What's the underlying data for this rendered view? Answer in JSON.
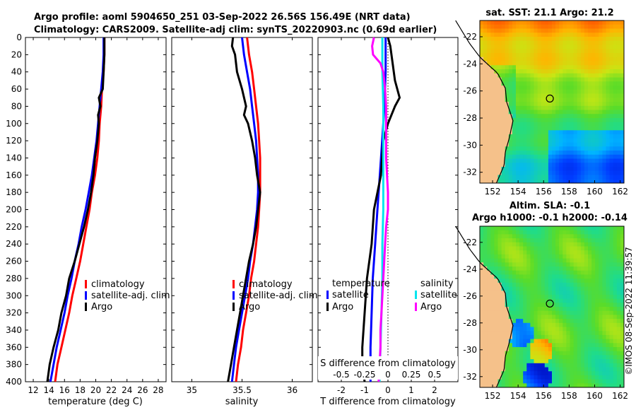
{
  "header": {
    "title_line1": "Argo profile: aoml 5904650_251 03-Sep-2022 26.56S 156.49E (NRT data)",
    "title_line2": "Climatology: CARS2009. Satellite-adj clim: synTS_20220903.nc (0.69d earlier)"
  },
  "colors": {
    "climatology": "#ff0000",
    "satellite": "#0000ff",
    "argo": "#000000",
    "satellite_salinity": "#00e5ee",
    "argo_salinity": "#ff00ff",
    "land": "#f5c18a"
  },
  "chart_data": [
    {
      "type": "line",
      "name": "temperature-profile",
      "xlabel": "temperature (deg C)",
      "ylabel": "",
      "xlim": [
        11,
        29
      ],
      "ylim": [
        400,
        0
      ],
      "xticks": [
        12,
        14,
        16,
        18,
        20,
        22,
        24,
        26,
        28
      ],
      "yticks": [
        0,
        20,
        40,
        60,
        80,
        100,
        120,
        140,
        160,
        180,
        200,
        220,
        240,
        260,
        280,
        300,
        320,
        340,
        360,
        380,
        400
      ],
      "legend": [
        "climatology",
        "satellite-adj. clim",
        "Argo"
      ],
      "series": [
        {
          "name": "climatology",
          "color": "#ff0000",
          "depth": [
            0,
            20,
            40,
            60,
            80,
            100,
            120,
            140,
            160,
            180,
            200,
            220,
            240,
            260,
            280,
            300,
            320,
            340,
            360,
            380,
            400
          ],
          "values": [
            21.1,
            21.1,
            21.0,
            20.8,
            20.7,
            20.5,
            20.4,
            20.2,
            19.9,
            19.5,
            19.2,
            18.8,
            18.4,
            18.0,
            17.5,
            17.0,
            16.6,
            16.1,
            15.6,
            15.1,
            14.8
          ]
        },
        {
          "name": "satellite-adj. clim",
          "color": "#0000ff",
          "depth": [
            0,
            20,
            40,
            60,
            80,
            100,
            120,
            140,
            160,
            180,
            200,
            220,
            240,
            260,
            280,
            300,
            320,
            340,
            360,
            380,
            400
          ],
          "values": [
            21.0,
            21.0,
            20.9,
            20.7,
            20.5,
            20.3,
            20.1,
            19.8,
            19.5,
            19.1,
            18.7,
            18.2,
            17.8,
            17.3,
            16.9,
            16.4,
            16.0,
            15.5,
            15.0,
            14.6,
            14.2
          ]
        },
        {
          "name": "Argo",
          "color": "#000000",
          "depth": [
            0,
            20,
            40,
            60,
            70,
            80,
            90,
            100,
            120,
            140,
            160,
            180,
            200,
            220,
            240,
            260,
            280,
            300,
            320,
            340,
            360,
            380,
            400
          ],
          "values": [
            21.1,
            21.1,
            21.0,
            20.9,
            20.4,
            20.6,
            20.3,
            20.4,
            20.2,
            19.9,
            19.7,
            19.4,
            19.0,
            18.5,
            17.9,
            17.3,
            16.6,
            16.2,
            15.6,
            15.2,
            14.6,
            14.1,
            13.8
          ]
        }
      ]
    },
    {
      "type": "line",
      "name": "salinity-profile",
      "xlabel": "salinity",
      "ylabel": "",
      "xlim": [
        34.8,
        36.2
      ],
      "ylim": [
        400,
        0
      ],
      "xticks": [
        35,
        35.5,
        36
      ],
      "xtick_labels": [
        "35",
        "35.5",
        "36"
      ],
      "legend": [
        "climatology",
        "satellite-adj. clim",
        "Argo"
      ],
      "series": [
        {
          "name": "climatology",
          "color": "#ff0000",
          "depth": [
            0,
            20,
            40,
            60,
            80,
            100,
            120,
            140,
            160,
            180,
            200,
            220,
            240,
            260,
            280,
            300,
            320,
            340,
            360,
            380,
            400
          ],
          "values": [
            35.55,
            35.57,
            35.6,
            35.62,
            35.64,
            35.66,
            35.67,
            35.68,
            35.68,
            35.68,
            35.67,
            35.66,
            35.64,
            35.62,
            35.59,
            35.57,
            35.54,
            35.51,
            35.49,
            35.46,
            35.44
          ]
        },
        {
          "name": "satellite-adj. clim",
          "color": "#0000ff",
          "depth": [
            0,
            20,
            40,
            60,
            80,
            100,
            120,
            140,
            160,
            180,
            200,
            220,
            240,
            260,
            280,
            300,
            320,
            340,
            360,
            380,
            400
          ],
          "values": [
            35.5,
            35.52,
            35.55,
            35.58,
            35.6,
            35.62,
            35.64,
            35.65,
            35.66,
            35.66,
            35.65,
            35.63,
            35.61,
            35.58,
            35.56,
            35.53,
            35.5,
            35.47,
            35.44,
            35.42,
            35.4
          ]
        },
        {
          "name": "Argo",
          "color": "#000000",
          "depth": [
            0,
            10,
            20,
            40,
            60,
            80,
            90,
            100,
            120,
            140,
            160,
            180,
            200,
            220,
            240,
            260,
            280,
            300,
            320,
            340,
            360,
            380,
            400
          ],
          "values": [
            35.41,
            35.4,
            35.43,
            35.45,
            35.5,
            35.54,
            35.52,
            35.56,
            35.6,
            35.63,
            35.65,
            35.68,
            35.66,
            35.64,
            35.61,
            35.57,
            35.54,
            35.51,
            35.48,
            35.45,
            35.42,
            35.39,
            35.36
          ]
        }
      ]
    },
    {
      "type": "line",
      "name": "difference-profile",
      "xlabel": "T difference from climatology",
      "ylabel": "",
      "xlim": [
        -3,
        3
      ],
      "ylim": [
        400,
        0
      ],
      "xticks": [
        -2,
        -1,
        0,
        1,
        2
      ],
      "top_axis_label": "S difference from climatology",
      "top_axis_ticks": [
        "-0.5",
        "-0.25",
        "0",
        "0.25",
        "0.5"
      ],
      "zero_line": "dotted",
      "legend_temperature": {
        "heading": "temperature",
        "items": [
          "satellite",
          "Argo"
        ]
      },
      "legend_salinity": {
        "heading": "salinity",
        "items": [
          "satellite",
          "Argo"
        ]
      },
      "series": [
        {
          "name": "T satellite",
          "color": "#0000ff",
          "depth": [
            0,
            40,
            80,
            120,
            160,
            200,
            240,
            280,
            320,
            360,
            400
          ],
          "values": [
            -0.1,
            -0.1,
            -0.15,
            -0.25,
            -0.35,
            -0.45,
            -0.55,
            -0.65,
            -0.7,
            -0.75,
            -0.75
          ]
        },
        {
          "name": "T Argo",
          "color": "#000000",
          "depth": [
            0,
            10,
            30,
            50,
            70,
            80,
            100,
            120,
            160,
            200,
            240,
            280,
            320,
            360,
            380,
            400
          ],
          "values": [
            0.0,
            0.1,
            0.2,
            0.3,
            0.5,
            0.3,
            0.0,
            -0.2,
            -0.3,
            -0.6,
            -0.7,
            -0.9,
            -1.0,
            -1.1,
            -1.1,
            -1.0
          ]
        },
        {
          "name": "S satellite",
          "color": "#00e5ee",
          "depth": [
            0,
            40,
            80,
            120,
            160,
            200,
            240,
            280,
            320,
            360,
            400
          ],
          "values": [
            -0.06,
            -0.06,
            -0.05,
            -0.05,
            -0.05,
            -0.05,
            -0.06,
            -0.06,
            -0.07,
            -0.08,
            -0.09
          ]
        },
        {
          "name": "S Argo",
          "color": "#ff00ff",
          "depth": [
            0,
            10,
            20,
            30,
            40,
            60,
            80,
            100,
            120,
            140,
            160,
            180,
            200,
            220,
            240,
            260,
            280,
            300,
            320,
            340,
            360,
            380,
            400
          ],
          "values": [
            -0.15,
            -0.17,
            -0.16,
            -0.08,
            -0.05,
            -0.03,
            -0.02,
            -0.02,
            -0.02,
            -0.02,
            -0.01,
            0.0,
            0.0,
            -0.02,
            -0.03,
            -0.04,
            -0.05,
            -0.06,
            -0.07,
            -0.08,
            -0.08,
            -0.09,
            -0.1
          ]
        }
      ]
    },
    {
      "type": "heatmap",
      "name": "sst-map",
      "title": "sat. SST: 21.1 Argo: 21.2",
      "xlim": [
        151,
        162.3
      ],
      "ylim": [
        -32.8,
        -20.8
      ],
      "xticks": [
        152,
        154,
        156,
        158,
        160,
        162
      ],
      "yticks": [
        -22,
        -24,
        -26,
        -28,
        -30,
        -32
      ],
      "marker": {
        "lon": 156.49,
        "lat": -26.56
      }
    },
    {
      "type": "heatmap",
      "name": "sla-map",
      "title_line1": "Altim. SLA: -0.1",
      "title_line2": "Argo h1000: -0.1 h2000: -0.14",
      "xlim": [
        151,
        162.3
      ],
      "ylim": [
        -32.8,
        -20.8
      ],
      "xticks": [
        152,
        154,
        156,
        158,
        160,
        162
      ],
      "yticks": [
        -22,
        -24,
        -26,
        -28,
        -30,
        -32
      ],
      "marker": {
        "lon": 156.49,
        "lat": -26.56
      }
    }
  ],
  "footer": {
    "copyright": "©IMOS 08-Sep-2022 11:39:57"
  }
}
